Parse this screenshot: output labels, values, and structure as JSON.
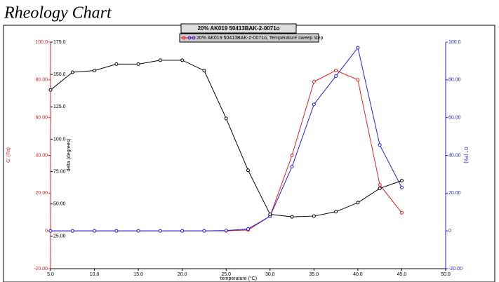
{
  "header": {
    "title": "Rheology Chart"
  },
  "chart_data": {
    "type": "line",
    "title": "20% AK019 50413BAK-2-0071o",
    "legend": "20% AK019 50413BAK-2-0071o, Temperature sweep step",
    "x_label": "temperature (°C)",
    "y_label": "G' (Pa)",
    "y2_label": "G'' (Pa)",
    "y3_label": "delta (degrees)",
    "x": [
      5,
      7.5,
      10,
      12.5,
      15,
      17.5,
      20,
      22.5,
      25,
      27.5,
      30,
      32.5,
      35,
      37.5,
      40,
      42.5,
      45
    ],
    "xlim": [
      5,
      50
    ],
    "xticks": [
      {
        "value": 5,
        "label": "5.0"
      },
      {
        "value": 10,
        "label": "10.0"
      },
      {
        "value": 15,
        "label": "15.0"
      },
      {
        "value": 20,
        "label": "20.0"
      },
      {
        "value": 25,
        "label": "25.0"
      },
      {
        "value": 30,
        "label": "30.0"
      },
      {
        "value": 35,
        "label": "35.0"
      },
      {
        "value": 40,
        "label": "40.0"
      },
      {
        "value": 45,
        "label": "45.0"
      },
      {
        "value": 50,
        "label": "50.0"
      }
    ],
    "ylim": [
      -20,
      100
    ],
    "yticks": [
      {
        "value": -20,
        "label": "-20.00"
      },
      0,
      {
        "value": 20,
        "label": "20.00"
      },
      {
        "value": 40,
        "label": "40.00"
      },
      {
        "value": 60,
        "label": "60.00"
      },
      {
        "value": 80,
        "label": "80.00"
      },
      {
        "value": 100,
        "label": "100.0"
      }
    ],
    "y2lim": [
      -20,
      100
    ],
    "y2ticks": [
      {
        "value": -20,
        "label": "-20.00"
      },
      0,
      {
        "value": 20,
        "label": "20.00"
      },
      {
        "value": 40,
        "label": "40.00"
      },
      {
        "value": 60,
        "label": "60.00"
      },
      {
        "value": 80,
        "label": "80.00"
      },
      {
        "value": 100,
        "label": "100.0"
      }
    ],
    "y3lim": [
      0,
      175
    ],
    "y3ticks": [
      {
        "value": 25,
        "label": "25.00"
      },
      {
        "value": 50,
        "label": "50.00"
      },
      {
        "value": 75,
        "label": "75.00"
      },
      {
        "value": 100,
        "label": "100.0"
      },
      {
        "value": 125,
        "label": "125.0"
      },
      {
        "value": 150,
        "label": "150.0"
      },
      {
        "value": 175,
        "label": "175.0"
      }
    ],
    "series": [
      {
        "color": "#e02020",
        "axis": "y",
        "values": [
          0,
          0,
          0,
          0,
          0,
          0,
          0,
          0,
          0,
          0.5,
          7.8,
          40,
          79,
          85,
          80,
          24.4,
          9.6
        ]
      },
      {
        "color": "#2020e0",
        "axis": "y2",
        "values": [
          0,
          0,
          0,
          0,
          0,
          0,
          0,
          0,
          0.2,
          1,
          7.8,
          34,
          67,
          82,
          97,
          45.5,
          23
        ]
      },
      {
        "color": "#000000",
        "axis": "y3",
        "values": [
          138,
          151.7,
          153,
          158,
          158,
          161,
          161,
          153,
          116,
          76,
          42,
          40,
          40.6,
          44,
          51,
          62,
          68
        ]
      }
    ]
  }
}
